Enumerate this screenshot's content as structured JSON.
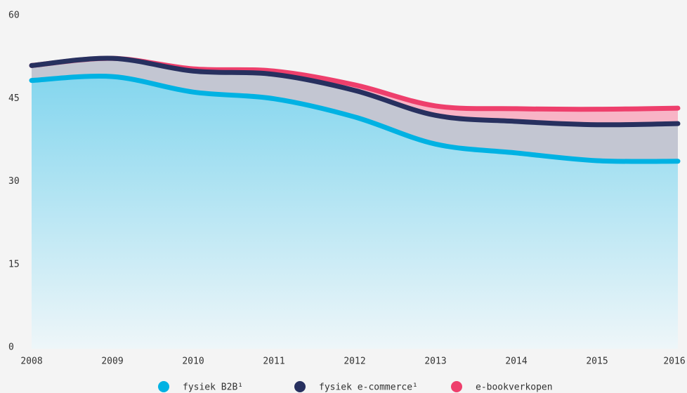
{
  "chart_data": {
    "type": "stacked-area",
    "categories": [
      "2008",
      "2009",
      "2010",
      "2011",
      "2012",
      "2013",
      "2014",
      "2015",
      "2016"
    ],
    "series": [
      {
        "name": "fysiek B2B¹",
        "color": "#00b2e3",
        "fill": "#8fd9ef",
        "values": [
          48.5,
          49.2,
          46.4,
          45.2,
          41.9,
          37.0,
          35.4,
          34.0,
          33.9
        ]
      },
      {
        "name": "fysiek e-commerce¹",
        "color": "#27305f",
        "fill": "#c3c6d2",
        "values": [
          2.7,
          3.3,
          3.8,
          4.4,
          4.8,
          5.2,
          5.7,
          6.5,
          6.8
        ]
      },
      {
        "name": "e-bookverkopen",
        "color": "#ee3f6c",
        "fill": "#f8b4c6",
        "values": [
          0,
          0,
          0.4,
          0.6,
          1.0,
          1.7,
          2.3,
          2.8,
          2.8
        ]
      }
    ],
    "ylim": [
      0,
      60
    ],
    "yticks": [
      0,
      15,
      30,
      45,
      60
    ],
    "grid": false,
    "legend": "bottom"
  }
}
